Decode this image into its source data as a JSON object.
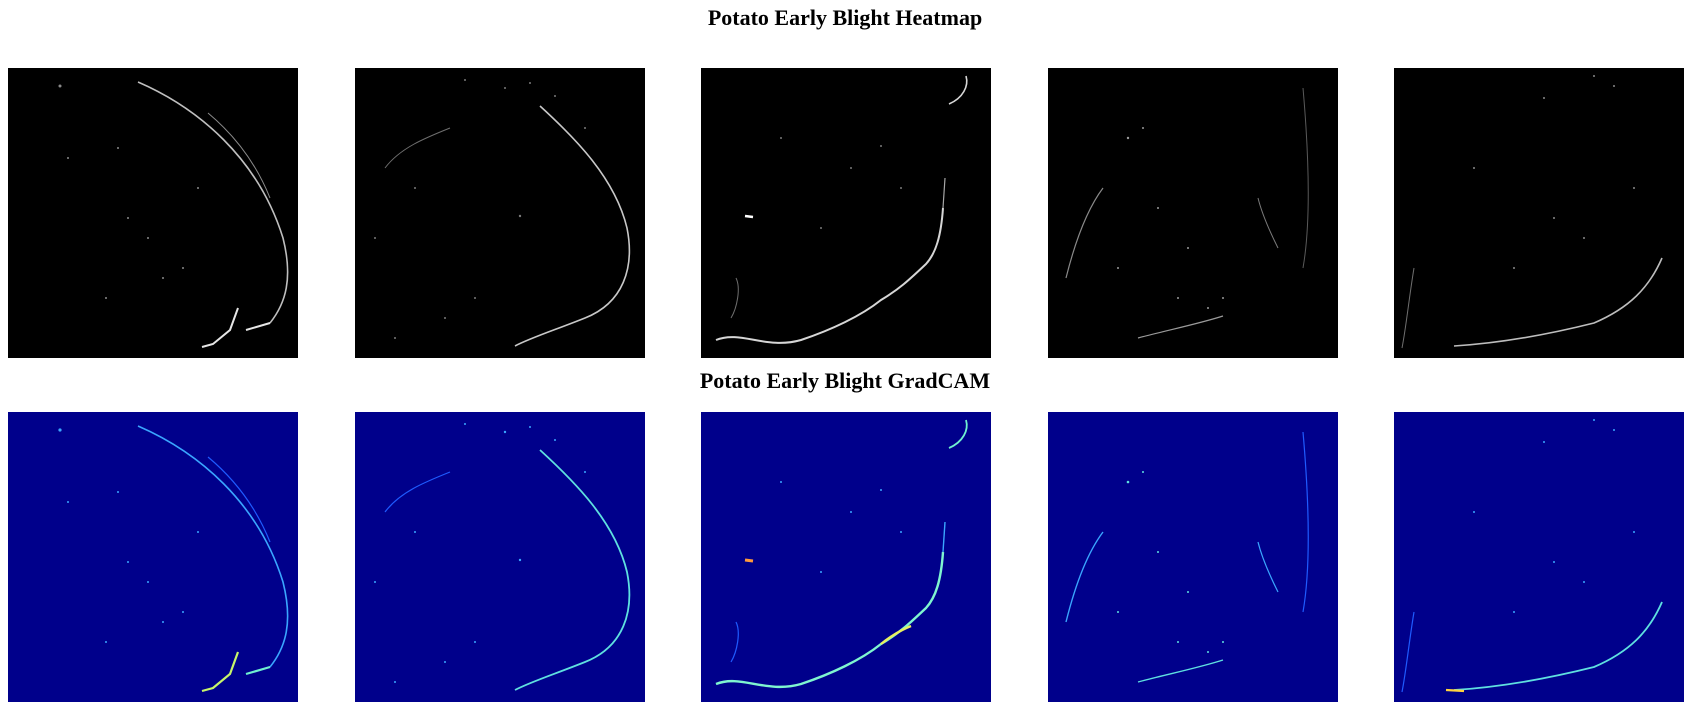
{
  "rows": {
    "heatmap": {
      "title": "Potato Early Blight Heatmap",
      "background": "#000000",
      "edge_color": "#d9d9d9",
      "panel_count": 5
    },
    "gradcam": {
      "title": "Potato Early Blight GradCAM",
      "background": "#00008b",
      "edge_color": "#4fd3ff",
      "hot_color": "#ffd23f",
      "panel_count": 5
    }
  }
}
